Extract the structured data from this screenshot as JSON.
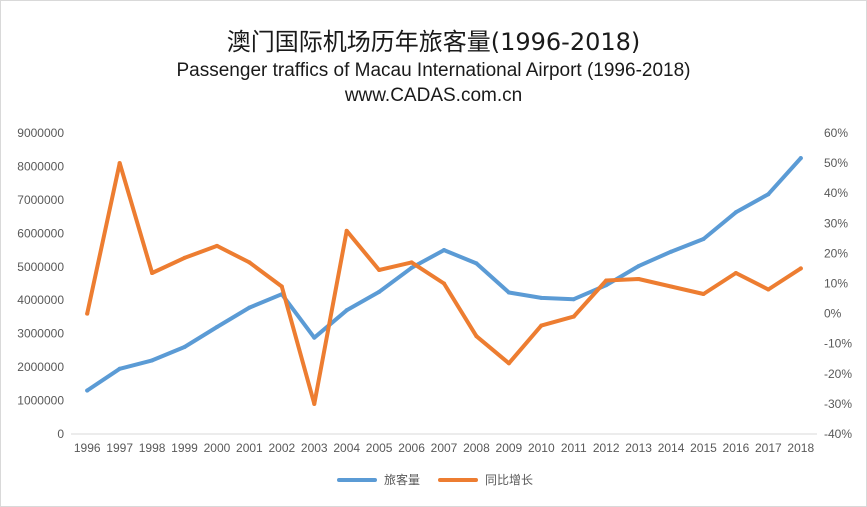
{
  "chart_data": {
    "type": "line",
    "title": "澳门国际机场历年旅客量(1996-2018)",
    "subtitle": "Passenger traffics of Macau International Airport (1996-2018)",
    "source": "www.CADAS.com.cn",
    "categories": [
      "1996",
      "1997",
      "1998",
      "1999",
      "2000",
      "2001",
      "2002",
      "2003",
      "2004",
      "2005",
      "2006",
      "2007",
      "2008",
      "2009",
      "2010",
      "2011",
      "2012",
      "2013",
      "2014",
      "2015",
      "2016",
      "2017",
      "2018"
    ],
    "series": [
      {
        "name": "旅客量",
        "axis": "left",
        "color": "#5b9bd5",
        "values": [
          1300000,
          1950000,
          2200000,
          2600000,
          3200000,
          3780000,
          4180000,
          2880000,
          3700000,
          4250000,
          4970000,
          5500000,
          5100000,
          4230000,
          4070000,
          4030000,
          4450000,
          5020000,
          5450000,
          5830000,
          6630000,
          7170000,
          8250000
        ]
      },
      {
        "name": "同比增长",
        "axis": "right",
        "color": "#ed7d31",
        "values": [
          0.0,
          0.5,
          0.135,
          0.185,
          0.225,
          0.17,
          0.09,
          -0.3,
          0.275,
          0.145,
          0.17,
          0.1,
          -0.075,
          -0.165,
          -0.04,
          -0.01,
          0.11,
          0.115,
          0.09,
          0.065,
          0.135,
          0.08,
          0.15
        ]
      }
    ],
    "y_left": {
      "ylim": [
        0,
        9000000
      ],
      "ticks": [
        0,
        1000000,
        2000000,
        3000000,
        4000000,
        5000000,
        6000000,
        7000000,
        8000000,
        9000000
      ],
      "tick_labels": [
        "0",
        "1000000",
        "2000000",
        "3000000",
        "4000000",
        "5000000",
        "6000000",
        "7000000",
        "8000000",
        "9000000"
      ]
    },
    "y_right": {
      "ylim": [
        -0.4,
        0.6
      ],
      "ticks": [
        -0.4,
        -0.3,
        -0.2,
        -0.1,
        0,
        0.1,
        0.2,
        0.3,
        0.4,
        0.5,
        0.6
      ],
      "tick_labels": [
        "-40%",
        "-30%",
        "-20%",
        "-10%",
        "0%",
        "10%",
        "20%",
        "30%",
        "40%",
        "50%",
        "60%"
      ]
    },
    "grid": false,
    "legend": "bottom"
  }
}
